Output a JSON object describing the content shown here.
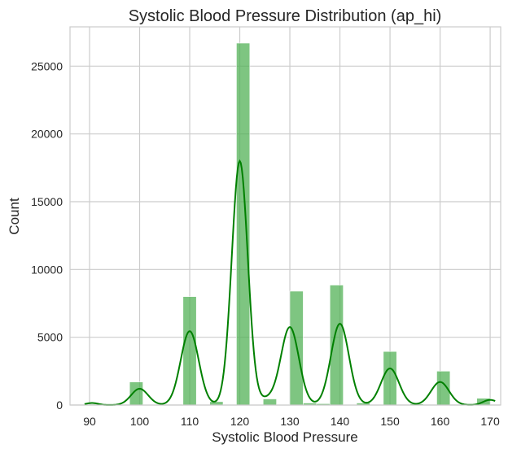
{
  "chart_data": {
    "type": "bar",
    "title": "Systolic Blood Pressure Distribution (ap_hi)",
    "xlabel": "Systolic Blood Pressure",
    "ylabel": "Count",
    "xlim": [
      86.1,
      172.1
    ],
    "ylim": [
      0,
      27900
    ],
    "x_ticks": [
      90,
      100,
      110,
      120,
      130,
      140,
      150,
      160,
      170
    ],
    "y_ticks": [
      0,
      5000,
      10000,
      15000,
      20000,
      25000
    ],
    "bin_width": 2.6667,
    "bins": [
      {
        "x0": 90.0,
        "count": 60
      },
      {
        "x0": 92.667,
        "count": 10
      },
      {
        "x0": 95.333,
        "count": 20
      },
      {
        "x0": 98.0,
        "count": 1700
      },
      {
        "x0": 100.667,
        "count": 40
      },
      {
        "x0": 103.333,
        "count": 0
      },
      {
        "x0": 106.0,
        "count": 10
      },
      {
        "x0": 108.667,
        "count": 8000
      },
      {
        "x0": 111.333,
        "count": 30
      },
      {
        "x0": 114.0,
        "count": 250
      },
      {
        "x0": 116.667,
        "count": 30
      },
      {
        "x0": 119.333,
        "count": 26700
      },
      {
        "x0": 122.0,
        "count": 30
      },
      {
        "x0": 124.667,
        "count": 450
      },
      {
        "x0": 127.333,
        "count": 40
      },
      {
        "x0": 130.0,
        "count": 8400
      },
      {
        "x0": 132.667,
        "count": 150
      },
      {
        "x0": 135.333,
        "count": 100
      },
      {
        "x0": 138.0,
        "count": 8850
      },
      {
        "x0": 140.667,
        "count": 40
      },
      {
        "x0": 143.333,
        "count": 150
      },
      {
        "x0": 146.0,
        "count": 30
      },
      {
        "x0": 148.667,
        "count": 3950
      },
      {
        "x0": 151.333,
        "count": 20
      },
      {
        "x0": 154.0,
        "count": 80
      },
      {
        "x0": 156.667,
        "count": 20
      },
      {
        "x0": 159.333,
        "count": 2500
      },
      {
        "x0": 162.0,
        "count": 10
      },
      {
        "x0": 164.667,
        "count": 40
      },
      {
        "x0": 167.333,
        "count": 500
      }
    ],
    "kde_peaks": [
      {
        "center": 90.5,
        "height": 150,
        "sigma": 1.2
      },
      {
        "center": 100.0,
        "height": 1200,
        "sigma": 1.7
      },
      {
        "center": 110.0,
        "height": 5450,
        "sigma": 1.8
      },
      {
        "center": 120.0,
        "height": 18000,
        "sigma": 1.6
      },
      {
        "center": 125.5,
        "height": 400,
        "sigma": 1.5
      },
      {
        "center": 130.0,
        "height": 5750,
        "sigma": 1.8
      },
      {
        "center": 140.0,
        "height": 6000,
        "sigma": 1.8
      },
      {
        "center": 150.0,
        "height": 2700,
        "sigma": 1.8
      },
      {
        "center": 160.0,
        "height": 1700,
        "sigma": 1.8
      },
      {
        "center": 170.0,
        "height": 380,
        "sigma": 1.4
      }
    ],
    "colors": {
      "bar": "#4caf50",
      "line": "#008000",
      "grid": "#cccccc"
    },
    "grid": true
  }
}
